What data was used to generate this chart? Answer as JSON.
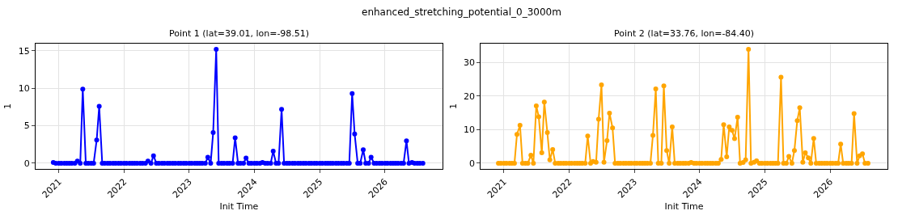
{
  "chart_data": [
    {
      "type": "line",
      "title": "Point 1 (lat=39.01, lon=-98.51)",
      "xlabel": "Init Time",
      "ylabel": "1",
      "annotations": [
        "enhanced_stretching_potential_0_3000m"
      ],
      "x": [
        "2020-12-01",
        "2020-12-15",
        "2021-01-01",
        "2021-01-15",
        "2021-02-01",
        "2021-02-15",
        "2021-03-01",
        "2021-03-15",
        "2021-04-01",
        "2021-04-15",
        "2021-05-01",
        "2021-05-15",
        "2021-06-01",
        "2021-06-15",
        "2021-07-01",
        "2021-07-15",
        "2021-08-01",
        "2021-08-15",
        "2021-09-01",
        "2021-09-15",
        "2021-10-01",
        "2021-10-15",
        "2021-11-01",
        "2021-11-15",
        "2021-12-01",
        "2021-12-15",
        "2022-01-01",
        "2022-01-15",
        "2022-02-01",
        "2022-02-15",
        "2022-03-01",
        "2022-03-15",
        "2022-04-01",
        "2022-04-15",
        "2022-05-01",
        "2022-05-15",
        "2022-06-01",
        "2022-06-15",
        "2022-07-01",
        "2022-07-15",
        "2022-08-01",
        "2022-08-15",
        "2022-09-01",
        "2022-09-15",
        "2022-10-01",
        "2022-10-15",
        "2022-11-01",
        "2022-11-15",
        "2022-12-01",
        "2022-12-15",
        "2023-01-01",
        "2023-01-15",
        "2023-02-01",
        "2023-02-15",
        "2023-03-01",
        "2023-03-15",
        "2023-04-01",
        "2023-04-15",
        "2023-05-01",
        "2023-05-15",
        "2023-06-01",
        "2023-06-15",
        "2023-07-01",
        "2023-07-15",
        "2023-08-01",
        "2023-08-15",
        "2023-09-01",
        "2023-09-15",
        "2023-10-01",
        "2023-10-15",
        "2023-11-01",
        "2023-11-15",
        "2023-12-01",
        "2023-12-15",
        "2024-01-01",
        "2024-01-15",
        "2024-02-01",
        "2024-02-15",
        "2024-03-01",
        "2024-03-15",
        "2024-04-01",
        "2024-04-15",
        "2024-05-01",
        "2024-05-15",
        "2024-06-01",
        "2024-06-15",
        "2024-07-01",
        "2024-07-15",
        "2024-08-01",
        "2024-08-15",
        "2024-09-01",
        "2024-09-15",
        "2024-10-01",
        "2024-10-15",
        "2024-11-01",
        "2024-11-15",
        "2024-12-01",
        "2024-12-15",
        "2025-01-01",
        "2025-01-15",
        "2025-02-01",
        "2025-02-15",
        "2025-03-01",
        "2025-03-15",
        "2025-04-01",
        "2025-04-15",
        "2025-05-01",
        "2025-05-15",
        "2025-06-01",
        "2025-06-15",
        "2025-07-01",
        "2025-07-15",
        "2025-08-01",
        "2025-08-15",
        "2025-09-01",
        "2025-09-15",
        "2025-10-01",
        "2025-10-15",
        "2025-11-01",
        "2025-11-15",
        "2025-12-01",
        "2025-12-15",
        "2026-01-01",
        "2026-01-15",
        "2026-02-01",
        "2026-02-15",
        "2026-03-01",
        "2026-03-15",
        "2026-04-01",
        "2026-04-15",
        "2026-05-01",
        "2026-05-15",
        "2026-06-01",
        "2026-06-15",
        "2026-07-01",
        "2026-07-15",
        "2026-08-01"
      ],
      "series": [
        {
          "color": "#0000ff",
          "values": [
            0.1,
            0,
            0,
            0,
            0,
            0,
            0,
            0,
            0,
            0.3,
            0,
            9.9,
            0,
            0,
            0,
            0,
            3.1,
            7.6,
            0,
            0,
            0,
            0,
            0,
            0,
            0,
            0,
            0,
            0,
            0,
            0,
            0,
            0,
            0,
            0,
            0,
            0.3,
            0,
            1.0,
            0,
            0,
            0,
            0,
            0,
            0,
            0,
            0,
            0,
            0,
            0,
            0,
            0,
            0,
            0,
            0,
            0,
            0,
            0,
            0.8,
            0,
            4.1,
            15.2,
            0,
            0,
            0,
            0,
            0,
            0,
            3.4,
            0,
            0,
            0,
            0.7,
            0,
            0,
            0,
            0,
            0,
            0.1,
            0,
            0,
            0,
            1.6,
            0,
            0,
            7.2,
            0,
            0,
            0,
            0,
            0,
            0,
            0,
            0,
            0,
            0,
            0,
            0,
            0,
            0,
            0,
            0,
            0,
            0,
            0,
            0,
            0,
            0,
            0,
            0,
            0,
            9.3,
            3.9,
            0,
            0,
            1.8,
            0,
            0,
            0.8,
            0,
            0,
            0,
            0,
            0,
            0,
            0,
            0,
            0,
            0,
            0,
            0,
            3.0,
            0,
            0.1,
            0,
            0,
            0,
            0
          ]
        }
      ],
      "xlim": [
        "2020-08-24",
        "2026-11-18"
      ],
      "xticks": [
        "2021",
        "2022",
        "2023",
        "2024",
        "2025",
        "2026"
      ],
      "ylim": [
        -0.76,
        15.96
      ],
      "yticks": [
        0,
        5,
        10,
        15
      ],
      "grid": true,
      "marker": "circle",
      "line_style": "solid"
    },
    {
      "type": "line",
      "title": "Point 2 (lat=33.76, lon=-84.40)",
      "xlabel": "Init Time",
      "ylabel": "1",
      "x": [
        "2020-12-01",
        "2020-12-15",
        "2021-01-01",
        "2021-01-15",
        "2021-02-01",
        "2021-02-15",
        "2021-03-01",
        "2021-03-15",
        "2021-04-01",
        "2021-04-15",
        "2021-05-01",
        "2021-05-15",
        "2021-06-01",
        "2021-06-15",
        "2021-07-01",
        "2021-07-15",
        "2021-08-01",
        "2021-08-15",
        "2021-09-01",
        "2021-09-15",
        "2021-10-01",
        "2021-10-15",
        "2021-11-01",
        "2021-11-15",
        "2021-12-01",
        "2021-12-15",
        "2022-01-01",
        "2022-01-15",
        "2022-02-01",
        "2022-02-15",
        "2022-03-01",
        "2022-03-15",
        "2022-04-01",
        "2022-04-15",
        "2022-05-01",
        "2022-05-15",
        "2022-06-01",
        "2022-06-15",
        "2022-07-01",
        "2022-07-15",
        "2022-08-01",
        "2022-08-15",
        "2022-09-01",
        "2022-09-15",
        "2022-10-01",
        "2022-10-15",
        "2022-11-01",
        "2022-11-15",
        "2022-12-01",
        "2022-12-15",
        "2023-01-01",
        "2023-01-15",
        "2023-02-01",
        "2023-02-15",
        "2023-03-01",
        "2023-03-15",
        "2023-04-01",
        "2023-04-15",
        "2023-05-01",
        "2023-05-15",
        "2023-06-01",
        "2023-06-15",
        "2023-07-01",
        "2023-07-15",
        "2023-08-01",
        "2023-08-15",
        "2023-09-01",
        "2023-09-15",
        "2023-10-01",
        "2023-10-15",
        "2023-11-01",
        "2023-11-15",
        "2023-12-01",
        "2023-12-15",
        "2024-01-01",
        "2024-01-15",
        "2024-02-01",
        "2024-02-15",
        "2024-03-01",
        "2024-03-15",
        "2024-04-01",
        "2024-04-15",
        "2024-05-01",
        "2024-05-15",
        "2024-06-01",
        "2024-06-15",
        "2024-07-01",
        "2024-07-15",
        "2024-08-01",
        "2024-08-15",
        "2024-09-01",
        "2024-09-15",
        "2024-10-01",
        "2024-10-15",
        "2024-11-01",
        "2024-11-15",
        "2024-12-01",
        "2024-12-15",
        "2025-01-01",
        "2025-01-15",
        "2025-02-01",
        "2025-02-15",
        "2025-03-01",
        "2025-03-15",
        "2025-04-01",
        "2025-04-15",
        "2025-05-01",
        "2025-05-15",
        "2025-06-01",
        "2025-06-15",
        "2025-07-01",
        "2025-07-15",
        "2025-08-01",
        "2025-08-15",
        "2025-09-01",
        "2025-09-15",
        "2025-10-01",
        "2025-10-15",
        "2025-11-01",
        "2025-11-15",
        "2025-12-01",
        "2025-12-15",
        "2026-01-01",
        "2026-01-15",
        "2026-02-01",
        "2026-02-15",
        "2026-03-01",
        "2026-03-15",
        "2026-04-01",
        "2026-04-15",
        "2026-05-01",
        "2026-05-15",
        "2026-06-01",
        "2026-06-15",
        "2026-07-01",
        "2026-07-15",
        "2026-08-01"
      ],
      "series": [
        {
          "color": "#ffa500",
          "values": [
            0,
            0,
            0,
            0,
            0,
            0,
            0,
            8.6,
            11.3,
            0,
            0,
            0,
            2.4,
            0,
            17.1,
            13.8,
            3.1,
            18.2,
            9.1,
            1.0,
            4.1,
            0,
            0,
            0,
            0,
            0,
            0,
            0,
            0,
            0,
            0,
            0,
            0,
            8.1,
            0,
            0.5,
            0.3,
            13.1,
            23.3,
            0.3,
            6.7,
            14.9,
            10.5,
            0,
            0,
            0,
            0,
            0,
            0,
            0,
            0,
            0,
            0,
            0,
            0,
            0,
            0,
            8.3,
            22.1,
            0,
            0,
            23.0,
            3.8,
            0,
            10.8,
            0,
            0,
            0,
            0,
            0,
            0,
            0.2,
            0,
            0,
            0,
            0,
            0,
            0,
            0,
            0,
            0,
            0,
            1.1,
            11.5,
            1.9,
            10.8,
            9.8,
            7.3,
            13.7,
            0,
            0.2,
            1.0,
            33.9,
            0,
            0.3,
            0.7,
            0,
            0,
            0,
            0,
            0,
            0,
            0,
            0,
            25.6,
            0,
            0,
            2.0,
            0,
            3.8,
            12.7,
            16.5,
            0.3,
            3.1,
            1.6,
            0,
            7.4,
            0,
            0,
            0,
            0,
            0,
            0,
            0,
            0,
            0,
            5.7,
            0,
            0,
            0,
            0,
            14.8,
            0,
            2.2,
            2.8,
            0,
            0
          ]
        }
      ],
      "xlim": [
        "2020-08-24",
        "2026-11-18"
      ],
      "xticks": [
        "2021",
        "2022",
        "2023",
        "2024",
        "2025",
        "2026"
      ],
      "ylim": [
        -1.7,
        35.6
      ],
      "yticks": [
        0,
        10,
        20,
        30
      ],
      "grid": true,
      "marker": "circle",
      "line_style": "solid"
    }
  ]
}
